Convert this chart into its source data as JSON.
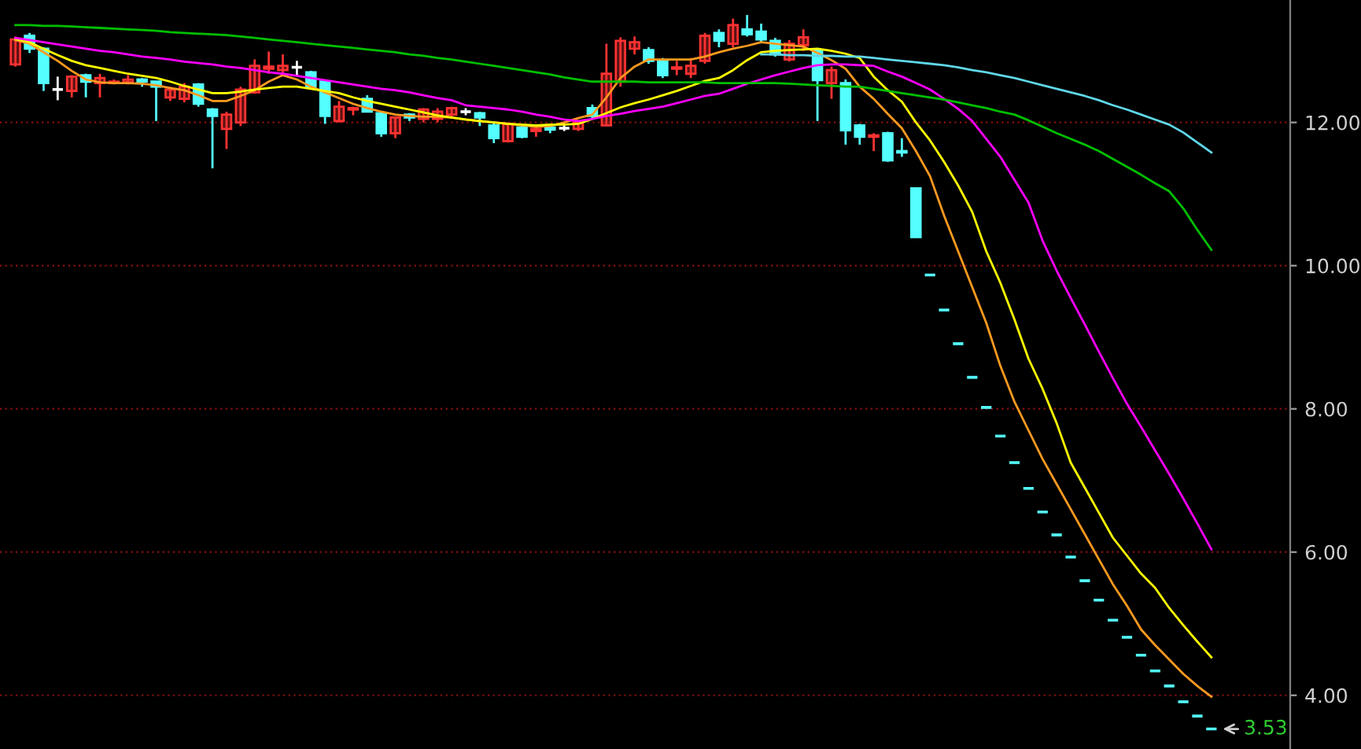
{
  "chart_data": {
    "type": "candlestick",
    "categories": [
      null,
      null,
      null,
      null,
      null,
      null,
      null,
      null,
      null,
      null,
      null,
      null,
      null,
      null,
      null,
      null,
      null,
      null,
      null,
      null,
      null,
      null,
      null,
      null,
      null,
      null,
      null,
      null,
      null,
      null,
      null,
      null,
      null,
      null,
      null,
      null,
      null,
      null,
      null,
      null,
      null,
      null,
      null,
      null,
      null,
      null,
      null,
      null,
      null,
      null,
      null,
      null,
      null,
      null,
      null,
      null,
      null,
      null,
      null,
      null,
      null,
      null,
      null,
      null,
      null,
      null,
      null,
      null,
      null,
      null,
      null,
      null,
      null,
      null,
      null,
      null,
      null,
      null,
      null,
      null,
      null,
      null,
      null,
      null,
      null,
      null
    ],
    "ohlc": [
      [
        12.81,
        13.2,
        12.78,
        13.16
      ],
      [
        13.21,
        13.25,
        12.97,
        13.03
      ],
      [
        13.03,
        13.05,
        12.44,
        12.55
      ],
      [
        12.46,
        12.64,
        12.31,
        12.46
      ],
      [
        12.44,
        12.66,
        12.35,
        12.64
      ],
      [
        12.66,
        12.68,
        12.35,
        12.57
      ],
      [
        12.55,
        12.68,
        12.35,
        12.62
      ],
      [
        12.55,
        12.6,
        12.53,
        12.57
      ],
      [
        12.56,
        12.66,
        12.53,
        12.6
      ],
      [
        12.6,
        12.62,
        12.5,
        12.57
      ],
      [
        12.57,
        12.57,
        12.02,
        12.5
      ],
      [
        12.35,
        12.5,
        12.3,
        12.46
      ],
      [
        12.33,
        12.55,
        12.28,
        12.5
      ],
      [
        12.53,
        12.55,
        12.22,
        12.26
      ],
      [
        12.18,
        12.2,
        11.36,
        12.09
      ],
      [
        11.91,
        12.15,
        11.63,
        12.11
      ],
      [
        12.0,
        12.5,
        11.95,
        12.46
      ],
      [
        12.42,
        12.88,
        12.4,
        12.79
      ],
      [
        12.75,
        12.99,
        12.68,
        12.78
      ],
      [
        12.73,
        12.95,
        12.66,
        12.79
      ],
      [
        12.77,
        12.86,
        12.66,
        12.77
      ],
      [
        12.7,
        12.72,
        12.48,
        12.5
      ],
      [
        12.57,
        12.6,
        11.98,
        12.09
      ],
      [
        12.02,
        12.3,
        12.0,
        12.22
      ],
      [
        12.18,
        12.22,
        12.1,
        12.2
      ],
      [
        12.33,
        12.38,
        12.15,
        12.15
      ],
      [
        12.13,
        12.15,
        11.8,
        11.85
      ],
      [
        11.85,
        12.07,
        11.78,
        12.07
      ],
      [
        12.11,
        12.13,
        12.02,
        12.07
      ],
      [
        12.05,
        12.2,
        12.0,
        12.18
      ],
      [
        12.05,
        12.2,
        12.0,
        12.15
      ],
      [
        12.11,
        12.22,
        12.05,
        12.2
      ],
      [
        12.15,
        12.2,
        12.1,
        12.15
      ],
      [
        12.13,
        12.15,
        11.95,
        12.07
      ],
      [
        11.96,
        12.0,
        11.71,
        11.78
      ],
      [
        11.74,
        12.0,
        11.72,
        11.98
      ],
      [
        11.93,
        11.95,
        11.78,
        11.8
      ],
      [
        11.88,
        11.93,
        11.8,
        11.91
      ],
      [
        11.93,
        11.96,
        11.85,
        11.9
      ],
      [
        11.92,
        11.96,
        11.88,
        11.92
      ],
      [
        11.91,
        12.02,
        11.88,
        12.0
      ],
      [
        12.2,
        12.25,
        12.05,
        12.09
      ],
      [
        11.96,
        13.1,
        11.95,
        12.68
      ],
      [
        12.57,
        13.19,
        12.5,
        13.14
      ],
      [
        13.03,
        13.2,
        12.95,
        13.12
      ],
      [
        13.01,
        13.05,
        12.82,
        12.86
      ],
      [
        12.86,
        12.9,
        12.62,
        12.66
      ],
      [
        12.75,
        12.86,
        12.66,
        12.77
      ],
      [
        12.68,
        12.9,
        12.62,
        12.79
      ],
      [
        12.86,
        13.25,
        12.82,
        13.21
      ],
      [
        13.25,
        13.3,
        13.05,
        13.14
      ],
      [
        13.1,
        13.45,
        13.05,
        13.36
      ],
      [
        13.3,
        13.5,
        13.2,
        13.23
      ],
      [
        13.27,
        13.38,
        13.12,
        13.16
      ],
      [
        13.14,
        13.18,
        12.92,
        12.95
      ],
      [
        12.88,
        13.15,
        12.85,
        13.1
      ],
      [
        13.08,
        13.3,
        13.0,
        13.19
      ],
      [
        13.01,
        13.03,
        12.02,
        12.59
      ],
      [
        12.55,
        12.78,
        12.33,
        12.73
      ],
      [
        12.55,
        12.6,
        11.69,
        11.89
      ],
      [
        11.96,
        11.98,
        11.69,
        11.8
      ],
      [
        11.8,
        11.85,
        11.6,
        11.82
      ],
      [
        11.85,
        11.87,
        11.45,
        11.47
      ],
      [
        11.6,
        11.78,
        11.52,
        11.58
      ],
      [
        11.08,
        11.08,
        10.4,
        10.4
      ],
      [
        9.87,
        9.87,
        9.87,
        9.87
      ],
      [
        9.38,
        9.38,
        9.38,
        9.38
      ],
      [
        8.91,
        8.91,
        8.91,
        8.91
      ],
      [
        8.44,
        8.44,
        8.44,
        8.44
      ],
      [
        8.02,
        8.02,
        8.02,
        8.02
      ],
      [
        7.62,
        7.62,
        7.62,
        7.62
      ],
      [
        7.25,
        7.25,
        7.25,
        7.25
      ],
      [
        6.89,
        6.89,
        6.89,
        6.89
      ],
      [
        6.56,
        6.56,
        6.56,
        6.56
      ],
      [
        6.24,
        6.24,
        6.24,
        6.24
      ],
      [
        5.93,
        5.93,
        5.93,
        5.93
      ],
      [
        5.6,
        5.6,
        5.6,
        5.6
      ],
      [
        5.33,
        5.33,
        5.33,
        5.33
      ],
      [
        5.05,
        5.05,
        5.05,
        5.05
      ],
      [
        4.81,
        4.81,
        4.81,
        4.81
      ],
      [
        4.56,
        4.56,
        4.56,
        4.56
      ],
      [
        4.34,
        4.34,
        4.34,
        4.34
      ],
      [
        4.13,
        4.13,
        4.13,
        4.13
      ],
      [
        3.91,
        3.91,
        3.91,
        3.91
      ],
      [
        3.71,
        3.71,
        3.71,
        3.71
      ],
      [
        3.53,
        3.53,
        3.53,
        3.53
      ]
    ],
    "colors": [
      "#ff3232",
      "#54ffff",
      "#54ffff",
      "#ffffff",
      "#ff3232",
      "#54ffff",
      "#ff3232",
      "#ff3232",
      "#ff3232",
      "#54ffff",
      "#54ffff",
      "#ff3232",
      "#ff3232",
      "#54ffff",
      "#54ffff",
      "#ff3232",
      "#ff3232",
      "#ff3232",
      "#ff3232",
      "#ff3232",
      "#ffffff",
      "#54ffff",
      "#54ffff",
      "#ff3232",
      "#ff3232",
      "#54ffff",
      "#54ffff",
      "#ff3232",
      "#54ffff",
      "#ff3232",
      "#ff3232",
      "#ff3232",
      "#ffffff",
      "#54ffff",
      "#54ffff",
      "#ff3232",
      "#54ffff",
      "#ff3232",
      "#54ffff",
      "#ffffff",
      "#ff3232",
      "#54ffff",
      "#ff3232",
      "#ff3232",
      "#ff3232",
      "#54ffff",
      "#54ffff",
      "#ff3232",
      "#ff3232",
      "#ff3232",
      "#54ffff",
      "#ff3232",
      "#54ffff",
      "#54ffff",
      "#54ffff",
      "#ff3232",
      "#ff3232",
      "#54ffff",
      "#ff3232",
      "#54ffff",
      "#54ffff",
      "#ff3232",
      "#54ffff",
      "#54ffff",
      "#54ffff",
      "#54ffff",
      "#54ffff",
      "#54ffff",
      "#54ffff",
      "#54ffff",
      "#54ffff",
      "#54ffff",
      "#54ffff",
      "#54ffff",
      "#54ffff",
      "#54ffff",
      "#54ffff",
      "#54ffff",
      "#54ffff",
      "#54ffff",
      "#54ffff",
      "#54ffff",
      "#54ffff",
      "#54ffff",
      "#54ffff",
      "#54ffff"
    ],
    "series": [
      {
        "type": "line",
        "color": "#ff9a1f",
        "values": [
          13.15,
          13.1,
          12.98,
          12.86,
          12.72,
          12.6,
          12.56,
          12.55,
          12.55,
          12.54,
          12.52,
          12.48,
          12.45,
          12.38,
          12.3,
          12.3,
          12.37,
          12.45,
          12.57,
          12.66,
          12.6,
          12.5,
          12.42,
          12.34,
          12.26,
          12.2,
          12.15,
          12.11,
          12.09,
          12.08,
          12.08,
          12.07,
          12.04,
          12.02,
          12.0,
          11.98,
          11.96,
          11.94,
          11.95,
          12.0,
          12.06,
          12.11,
          12.35,
          12.62,
          12.78,
          12.88,
          12.88,
          12.88,
          12.88,
          12.92,
          12.98,
          13.03,
          13.07,
          13.12,
          13.1,
          13.08,
          13.06,
          12.97,
          12.87,
          12.75,
          12.5,
          12.33,
          12.12,
          11.92,
          11.6,
          11.25,
          10.7,
          10.2,
          9.7,
          9.2,
          8.6,
          8.1,
          7.7,
          7.3,
          6.95,
          6.6,
          6.25,
          5.9,
          5.55,
          5.25,
          4.92,
          4.7,
          4.5,
          4.3,
          4.13,
          3.98
        ]
      },
      {
        "type": "line",
        "color": "#ffff00",
        "values": [
          13.17,
          13.12,
          13.03,
          12.94,
          12.86,
          12.8,
          12.76,
          12.72,
          12.68,
          12.65,
          12.62,
          12.57,
          12.51,
          12.46,
          12.41,
          12.41,
          12.43,
          12.46,
          12.48,
          12.5,
          12.5,
          12.47,
          12.44,
          12.41,
          12.35,
          12.3,
          12.26,
          12.22,
          12.18,
          12.14,
          12.1,
          12.07,
          12.04,
          12.02,
          12.0,
          11.98,
          11.97,
          11.96,
          11.97,
          11.97,
          11.98,
          12.05,
          12.13,
          12.21,
          12.27,
          12.32,
          12.38,
          12.44,
          12.51,
          12.58,
          12.62,
          12.73,
          12.87,
          12.98,
          13.0,
          13.01,
          13.02,
          13.03,
          13.0,
          12.96,
          12.9,
          12.64,
          12.45,
          12.29,
          12.0,
          11.75,
          11.45,
          11.12,
          10.75,
          10.2,
          9.76,
          9.25,
          8.7,
          8.28,
          7.8,
          7.25,
          6.9,
          6.55,
          6.2,
          5.95,
          5.7,
          5.5,
          5.22,
          4.98,
          4.75,
          4.53
        ]
      },
      {
        "type": "line",
        "color": "#ff00ff",
        "values": [
          13.18,
          13.15,
          13.12,
          13.09,
          13.06,
          13.03,
          13.0,
          12.98,
          12.95,
          12.92,
          12.9,
          12.88,
          12.85,
          12.83,
          12.81,
          12.78,
          12.76,
          12.73,
          12.7,
          12.68,
          12.65,
          12.62,
          12.59,
          12.56,
          12.53,
          12.5,
          12.47,
          12.45,
          12.42,
          12.38,
          12.34,
          12.31,
          12.24,
          12.22,
          12.2,
          12.18,
          12.15,
          12.11,
          12.08,
          12.04,
          12.02,
          12.05,
          12.09,
          12.12,
          12.16,
          12.19,
          12.22,
          12.27,
          12.32,
          12.37,
          12.4,
          12.47,
          12.54,
          12.6,
          12.66,
          12.71,
          12.76,
          12.8,
          12.81,
          12.81,
          12.8,
          12.79,
          12.71,
          12.64,
          12.55,
          12.46,
          12.33,
          12.19,
          12.02,
          11.77,
          11.52,
          11.2,
          10.88,
          10.35,
          9.93,
          9.55,
          9.18,
          8.8,
          8.43,
          8.07,
          7.75,
          7.42,
          7.09,
          6.75,
          6.4,
          6.04
        ]
      },
      {
        "type": "line",
        "color": "#00c000",
        "values": [
          13.36,
          13.36,
          13.35,
          13.35,
          13.34,
          13.33,
          13.32,
          13.31,
          13.3,
          13.29,
          13.28,
          13.26,
          13.25,
          13.24,
          13.23,
          13.22,
          13.2,
          13.18,
          13.16,
          13.14,
          13.12,
          13.1,
          13.08,
          13.06,
          13.04,
          13.02,
          13.0,
          12.98,
          12.95,
          12.93,
          12.9,
          12.88,
          12.85,
          12.82,
          12.79,
          12.76,
          12.73,
          12.7,
          12.67,
          12.63,
          12.6,
          12.57,
          12.57,
          12.57,
          12.57,
          12.56,
          12.56,
          12.56,
          12.56,
          12.56,
          12.55,
          12.55,
          12.55,
          12.55,
          12.55,
          12.54,
          12.53,
          12.52,
          12.51,
          12.5,
          12.5,
          12.47,
          12.44,
          12.41,
          12.38,
          12.35,
          12.32,
          12.28,
          12.24,
          12.2,
          12.15,
          12.11,
          12.03,
          11.94,
          11.85,
          11.77,
          11.69,
          11.6,
          11.49,
          11.38,
          11.27,
          11.15,
          11.04,
          10.8,
          10.5,
          10.22
        ]
      },
      {
        "type": "line",
        "color": "#5fd7e8",
        "values": [
          null,
          null,
          null,
          null,
          null,
          null,
          null,
          null,
          null,
          null,
          null,
          null,
          null,
          null,
          null,
          null,
          null,
          null,
          null,
          null,
          null,
          null,
          null,
          null,
          null,
          null,
          null,
          null,
          null,
          null,
          null,
          null,
          null,
          null,
          null,
          null,
          null,
          null,
          null,
          null,
          null,
          null,
          null,
          null,
          null,
          null,
          null,
          null,
          null,
          null,
          null,
          null,
          null,
          12.95,
          12.95,
          12.94,
          12.94,
          12.93,
          12.93,
          12.92,
          12.92,
          12.9,
          12.88,
          12.86,
          12.84,
          12.82,
          12.8,
          12.77,
          12.73,
          12.7,
          12.66,
          12.62,
          12.57,
          12.52,
          12.47,
          12.42,
          12.37,
          12.31,
          12.24,
          12.18,
          12.11,
          12.04,
          11.97,
          11.86,
          11.72,
          11.58
        ]
      }
    ],
    "ylim": [
      3.25,
      13.71
    ],
    "yticks": [
      {
        "value": 4,
        "label": "4.00"
      },
      {
        "value": 6,
        "label": "6.00"
      },
      {
        "value": 8,
        "label": "8.00"
      },
      {
        "value": 10,
        "label": "10.00"
      },
      {
        "value": 12,
        "label": "12.00"
      }
    ],
    "grid": "y",
    "annotations": [
      "3.53"
    ]
  }
}
